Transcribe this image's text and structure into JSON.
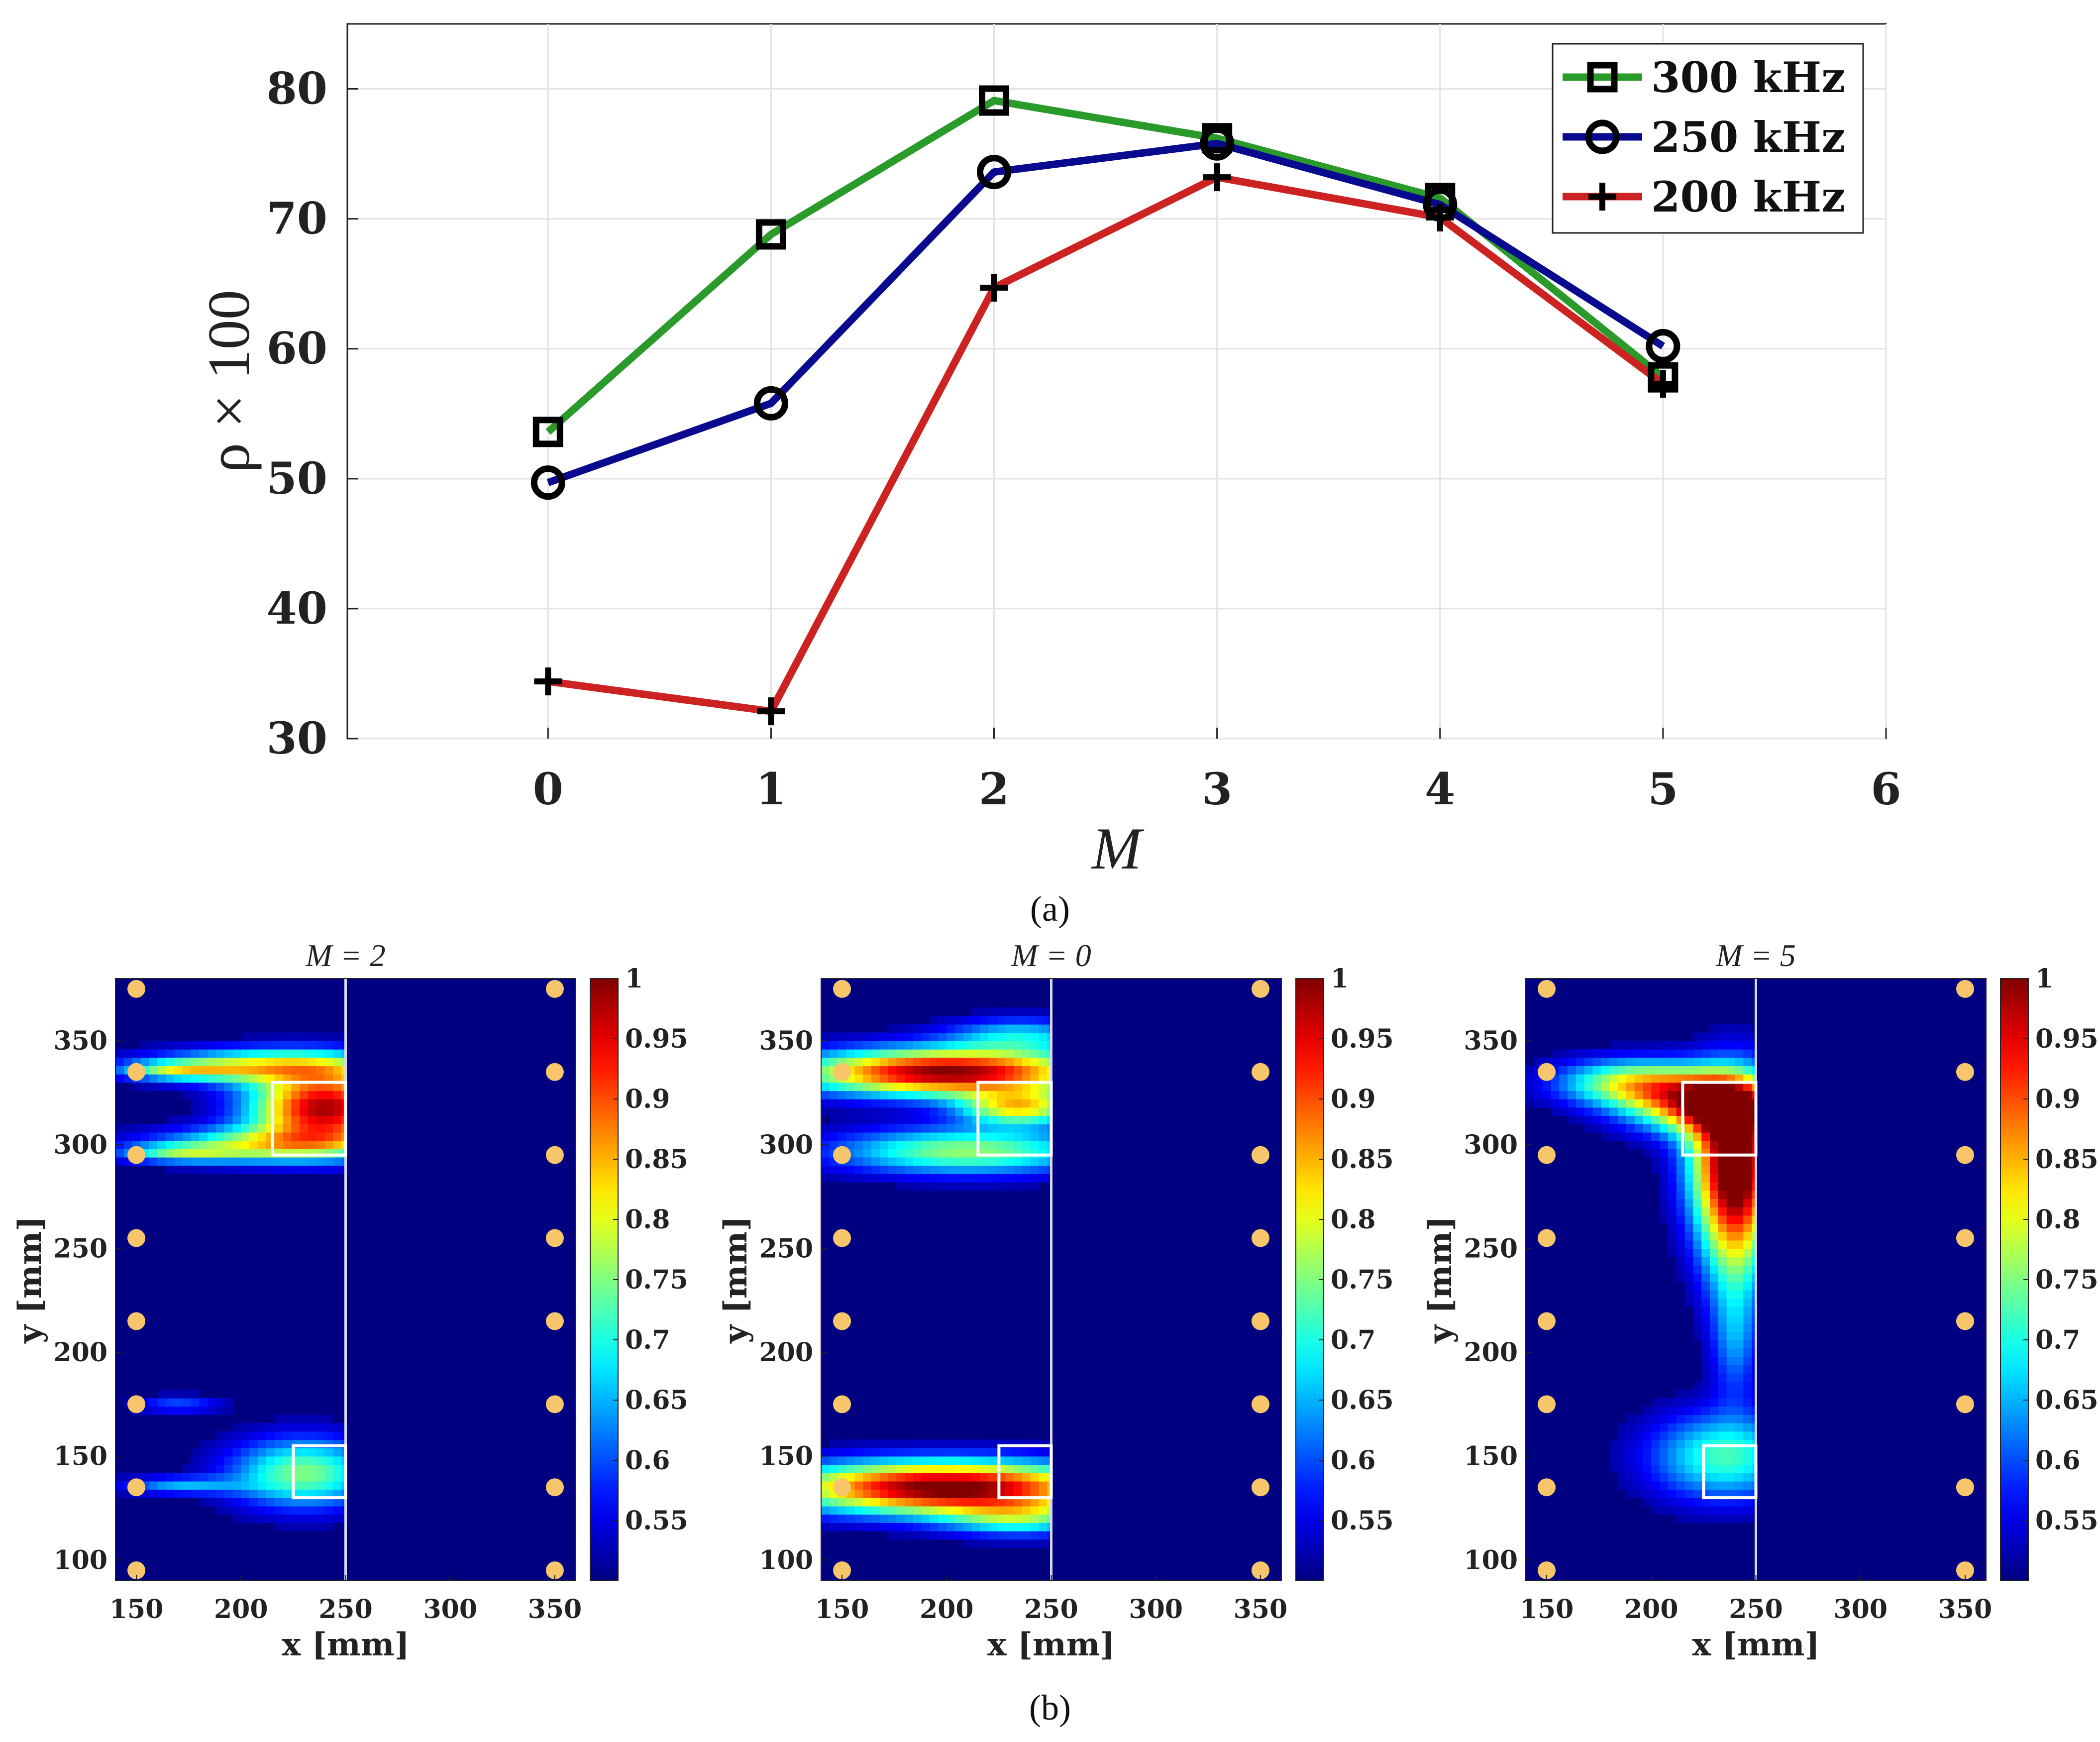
{
  "chart_data": [
    {
      "panel": "a",
      "caption": "(a)",
      "type": "line",
      "xlabel": "M",
      "ylabel": "ρ × 100",
      "xlim": [
        -0.9,
        6
      ],
      "ylim": [
        30,
        85
      ],
      "xticks": [
        0,
        1,
        2,
        3,
        4,
        5,
        6
      ],
      "yticks": [
        30,
        40,
        50,
        60,
        70,
        80
      ],
      "grid": true,
      "legend_position": "top-right",
      "x": [
        0,
        1,
        2,
        3,
        4,
        5
      ],
      "series": [
        {
          "name": "300 kHz",
          "color": "#2a9a2a",
          "marker": "square",
          "values": [
            53.6,
            68.8,
            79.1,
            76.2,
            71.6,
            57.8
          ]
        },
        {
          "name": "250 kHz",
          "color": "#0a0a8e",
          "marker": "circle",
          "values": [
            49.7,
            55.8,
            73.6,
            75.8,
            71.1,
            60.2
          ]
        },
        {
          "name": "200 kHz",
          "color": "#cc2222",
          "marker": "plus",
          "values": [
            34.4,
            32.1,
            64.7,
            73.2,
            70.1,
            57.3
          ]
        }
      ]
    },
    {
      "panel": "b",
      "caption": "(b)",
      "type": "heatmap",
      "colormap": "jet",
      "xlabel": "x [mm]",
      "ylabel": "y [mm]",
      "xlim": [
        140,
        360
      ],
      "ylim": [
        90,
        380
      ],
      "xticks": [
        150,
        200,
        250,
        300,
        350
      ],
      "yticks": [
        100,
        150,
        200,
        250,
        300,
        350
      ],
      "colorbar_range": [
        0.5,
        1
      ],
      "colorbar_ticks": [
        1,
        0.95,
        0.9,
        0.85,
        0.8,
        0.75,
        0.7,
        0.65,
        0.6,
        0.55
      ],
      "boundary_x": 250,
      "sensor_x": [
        150,
        350
      ],
      "sensor_y": [
        95,
        135,
        175,
        215,
        255,
        295,
        335,
        375
      ],
      "maps": [
        {
          "title": "M = 2",
          "blobs": [
            {
              "x": 240,
              "y": 318,
              "sx": 25,
              "sy": 12,
              "a": 0.48
            },
            {
              "x": 215,
              "y": 338,
              "sx": 40,
              "sy": 6,
              "a": 0.28
            },
            {
              "x": 215,
              "y": 300,
              "sx": 40,
              "sy": 6,
              "a": 0.26
            },
            {
              "x": 170,
              "y": 336,
              "sx": 20,
              "sy": 3,
              "a": 0.18
            },
            {
              "x": 170,
              "y": 296,
              "sx": 20,
              "sy": 3,
              "a": 0.16
            },
            {
              "x": 230,
              "y": 142,
              "sx": 25,
              "sy": 12,
              "a": 0.25
            },
            {
              "x": 170,
              "y": 136,
              "sx": 20,
              "sy": 3,
              "a": 0.14
            },
            {
              "x": 170,
              "y": 175,
              "sx": 15,
              "sy": 3,
              "a": 0.1
            }
          ],
          "boxes": [
            {
              "x1": 215,
              "x2": 250,
              "y1": 295,
              "y2": 330
            },
            {
              "x1": 225,
              "x2": 250,
              "y1": 130,
              "y2": 155
            }
          ]
        },
        {
          "title": "M = 0",
          "blobs": [
            {
              "x": 200,
              "y": 335,
              "sx": 50,
              "sy": 8,
              "a": 0.5
            },
            {
              "x": 235,
              "y": 318,
              "sx": 20,
              "sy": 6,
              "a": 0.3
            },
            {
              "x": 210,
              "y": 297,
              "sx": 45,
              "sy": 8,
              "a": 0.26
            },
            {
              "x": 235,
              "y": 353,
              "sx": 25,
              "sy": 6,
              "a": 0.16
            },
            {
              "x": 200,
              "y": 135,
              "sx": 55,
              "sy": 9,
              "a": 0.52
            },
            {
              "x": 235,
              "y": 120,
              "sx": 25,
              "sy": 6,
              "a": 0.18
            }
          ],
          "boxes": [
            {
              "x1": 215,
              "x2": 250,
              "y1": 295,
              "y2": 330
            },
            {
              "x1": 225,
              "x2": 250,
              "y1": 130,
              "y2": 155
            }
          ]
        },
        {
          "title": "M = 5",
          "blobs": [
            {
              "x": 240,
              "y": 295,
              "sx": 15,
              "sy": 25,
              "a": 0.5
            },
            {
              "x": 225,
              "y": 320,
              "sx": 25,
              "sy": 10,
              "a": 0.4
            },
            {
              "x": 190,
              "y": 330,
              "sx": 25,
              "sy": 8,
              "a": 0.26
            },
            {
              "x": 240,
              "y": 255,
              "sx": 12,
              "sy": 25,
              "a": 0.22
            },
            {
              "x": 235,
              "y": 150,
              "sx": 25,
              "sy": 15,
              "a": 0.22
            },
            {
              "x": 240,
              "y": 205,
              "sx": 8,
              "sy": 20,
              "a": 0.12
            }
          ],
          "boxes": [
            {
              "x1": 215,
              "x2": 250,
              "y1": 295,
              "y2": 330
            },
            {
              "x1": 225,
              "x2": 250,
              "y1": 130,
              "y2": 155
            }
          ]
        }
      ]
    }
  ]
}
